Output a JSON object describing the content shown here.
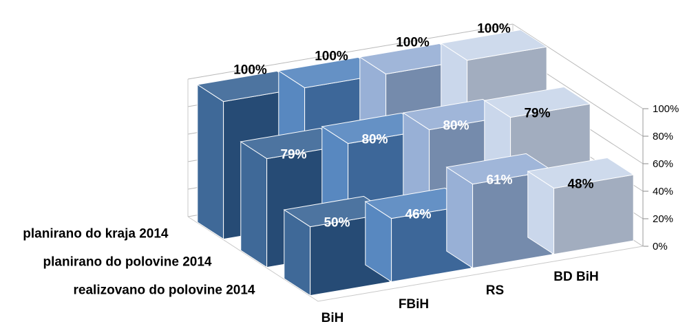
{
  "chart_data": {
    "type": "bar",
    "subtype": "3d-column",
    "categories": [
      "BiH",
      "FBiH",
      "RS",
      "BD BiH"
    ],
    "series": [
      {
        "name": "realizovano do polovine 2014",
        "values": [
          50,
          46,
          61,
          48
        ]
      },
      {
        "name": "planirano do polovine 2014",
        "values": [
          79,
          80,
          80,
          79
        ]
      },
      {
        "name": "planirano do kraja 2014",
        "values": [
          100,
          100,
          100,
          100
        ]
      }
    ],
    "data_labels": {
      "front": [
        "50%",
        "46%",
        "61%",
        "48%"
      ],
      "middle": [
        "79%",
        "80%",
        "80%",
        "79%"
      ],
      "back": [
        "100%",
        "100%",
        "100%",
        "100%"
      ]
    },
    "yticks": [
      "0%",
      "20%",
      "40%",
      "60%",
      "80%",
      "100%"
    ],
    "ylim": [
      0,
      100
    ],
    "grid": true,
    "colors": {
      "BiH": "#2E5C8F",
      "FBiH": "#4A7EBB",
      "RS": "#8FA9D2",
      "BD BiH": "#C5D3E9"
    }
  }
}
